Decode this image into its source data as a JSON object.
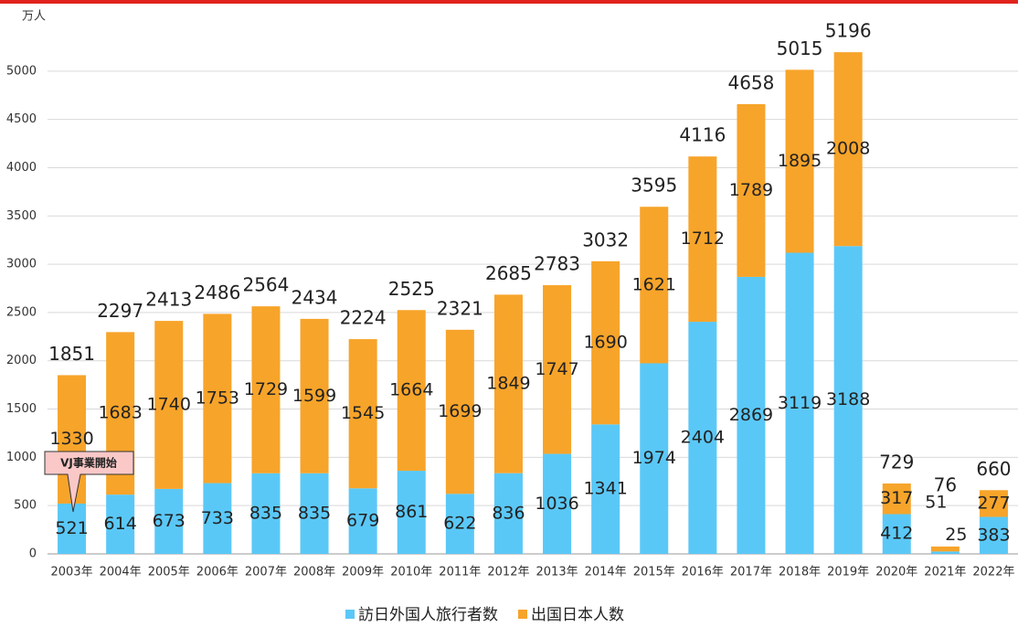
{
  "chart_data": {
    "type": "bar",
    "stacked": true,
    "y_unit": "万人",
    "categories": [
      "2003年",
      "2004年",
      "2005年",
      "2006年",
      "2007年",
      "2008年",
      "2009年",
      "2010年",
      "2011年",
      "2012年",
      "2013年",
      "2014年",
      "2015年",
      "2016年",
      "2017年",
      "2018年",
      "2019年",
      "2020年",
      "2021年",
      "2022年"
    ],
    "series": [
      {
        "name": "訪日外国人旅行者数",
        "color": "#5ac8f7",
        "values": [
          521,
          614,
          673,
          733,
          835,
          835,
          679,
          861,
          622,
          836,
          1036,
          1341,
          1974,
          2404,
          2869,
          3119,
          3188,
          412,
          25,
          383
        ]
      },
      {
        "name": "出国日本人数",
        "color": "#f7a42a",
        "values": [
          1330,
          1683,
          1740,
          1753,
          1729,
          1599,
          1545,
          1664,
          1699,
          1849,
          1747,
          1690,
          1621,
          1712,
          1789,
          1895,
          2008,
          317,
          51,
          277
        ]
      }
    ],
    "totals": [
      1851,
      2297,
      2413,
      2486,
      2564,
      2434,
      2224,
      2525,
      2321,
      2685,
      2783,
      3032,
      3595,
      4116,
      4658,
      5015,
      5196,
      729,
      76,
      660
    ],
    "annotation": "VJ事業開始",
    "ylim": [
      0,
      5500
    ],
    "yticks": [
      0,
      500,
      1000,
      1500,
      2000,
      2500,
      3000,
      3500,
      4000,
      4500,
      5000
    ],
    "grid": true,
    "legend": "bottom"
  }
}
